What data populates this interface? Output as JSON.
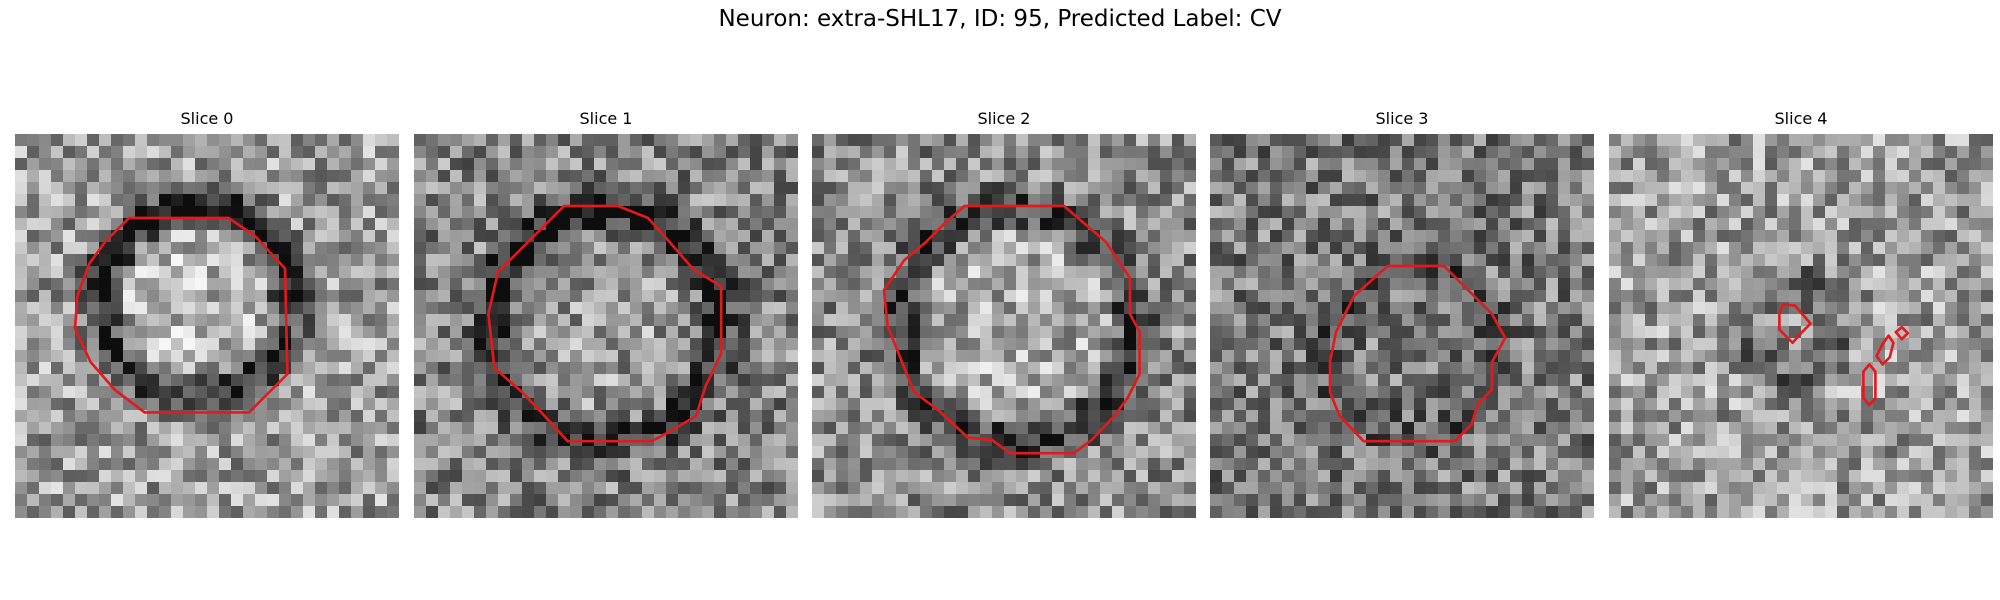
{
  "figure": {
    "title": "Neuron: extra-SHL17, ID: 95, Predicted Label: CV"
  },
  "colors": {
    "background": "#ffffff",
    "contour": "#e31a1c",
    "colormap": "gray"
  },
  "panels": [
    {
      "title": "Slice 0"
    },
    {
      "title": "Slice 1"
    },
    {
      "title": "Slice 2"
    },
    {
      "title": "Slice 3"
    },
    {
      "title": "Slice 4"
    }
  ]
}
